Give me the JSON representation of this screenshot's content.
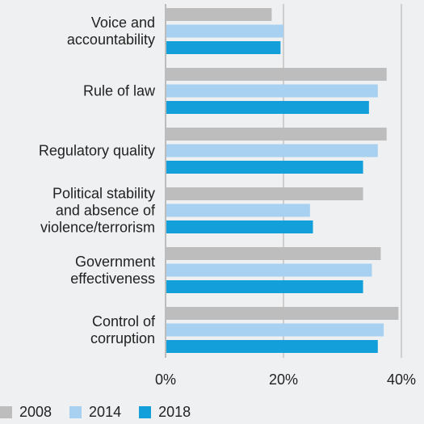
{
  "chart_data": {
    "type": "bar",
    "orientation": "horizontal",
    "categories": [
      [
        "Voice and",
        "accountability"
      ],
      [
        "Rule of law"
      ],
      [
        "Regulatory quality"
      ],
      [
        "Political stability",
        "and absence of",
        "violence/terrorism"
      ],
      [
        "Government",
        "effectiveness"
      ],
      [
        "Control of",
        "corruption"
      ]
    ],
    "series": [
      {
        "name": "2008",
        "color": "#bdbdbd",
        "values": [
          18,
          37.5,
          37.5,
          33.5,
          36.5,
          39.5
        ]
      },
      {
        "name": "2014",
        "color": "#a8d0f0",
        "values": [
          20,
          36,
          36,
          24.5,
          35,
          37
        ]
      },
      {
        "name": "2018",
        "color": "#139fda",
        "values": [
          19.5,
          34.5,
          33.5,
          25,
          33.5,
          36
        ]
      }
    ],
    "x_ticks": [
      "0%",
      "20%",
      "40%"
    ],
    "x_tick_values": [
      0,
      20,
      40
    ],
    "xlim": [
      0,
      40
    ],
    "grid": true,
    "legend_position": "bottom-left"
  }
}
